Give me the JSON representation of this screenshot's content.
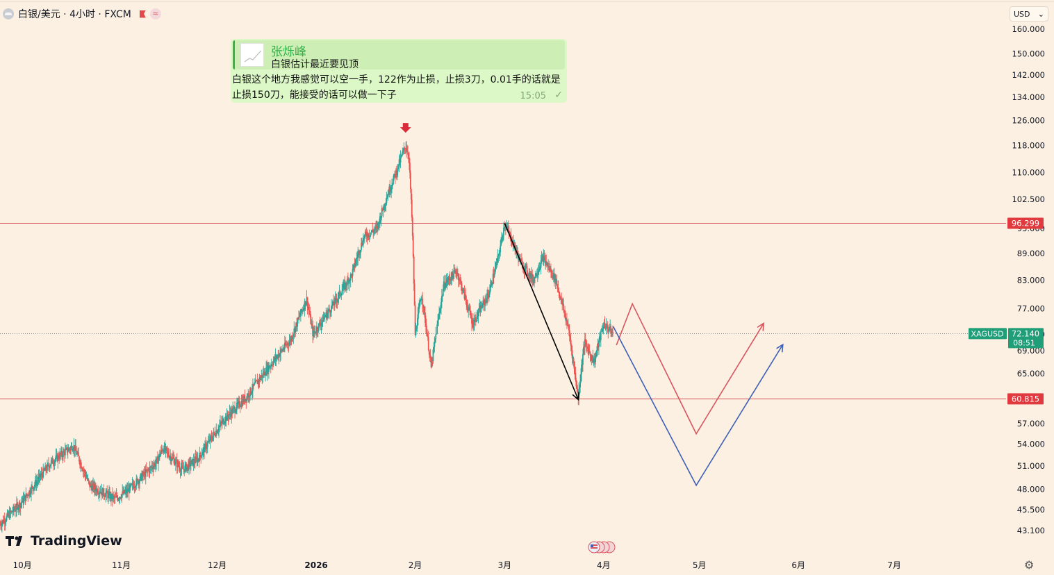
{
  "header": {
    "symbol_title": "白银/美元 · 4小时 · FXCM",
    "currency": "USD",
    "currency_chevron": "⌄",
    "wave_glyph": "≈"
  },
  "message": {
    "name": "张烁峰",
    "quote": "白银估计最近要见顶",
    "body": "白银这个地方我感觉可以空一手，122作为止损，止损3刀，0.01手的话就是止损150刀，能接受的话可以做一下子",
    "time": "15:05",
    "check": "✓"
  },
  "watermark": "TradingView",
  "colors": {
    "background": "#fbf0e2",
    "up": "#26a69a",
    "down": "#ef5350",
    "level_line": "#d9535c",
    "projection_red": "#d9535c",
    "projection_blue": "#3d5fb8",
    "trend_arrow": "#000000",
    "marker_arrow": "#d92b3a",
    "current_price_badge": "#1f9e78",
    "level_badge": "#e0393e"
  },
  "chart_data": {
    "type": "candlestick",
    "symbol": "XAGUSD",
    "timeframe": "4小时",
    "ylim": [
      40.5,
      163
    ],
    "y_ticks": [
      43.1,
      45.5,
      48.0,
      51.0,
      54.0,
      57.0,
      60.815,
      65.0,
      69.0,
      72.0,
      77.0,
      83.0,
      89.0,
      95.0,
      96.299,
      102.5,
      110.0,
      118.0,
      126.0,
      134.0,
      142.0,
      150.0,
      160.0
    ],
    "y_tick_labels": [
      "43.100",
      "45.500",
      "48.000",
      "51.000",
      "54.000",
      "57.000",
      "60.815",
      "65.000",
      "69.000",
      "72.000",
      "77.000",
      "83.000",
      "89.000",
      "95.000",
      "96.299",
      "102.500",
      "110.000",
      "118.000",
      "126.000",
      "134.000",
      "142.000",
      "150.000",
      "160.000"
    ],
    "x_ticks": [
      {
        "date": "2025-10-01",
        "label": "10月"
      },
      {
        "date": "2025-11-01",
        "label": "11月"
      },
      {
        "date": "2025-12-01",
        "label": "12月"
      },
      {
        "date": "2026-01-01",
        "label": "2026"
      },
      {
        "date": "2026-02-01",
        "label": "2月"
      },
      {
        "date": "2026-03-01",
        "label": "3月"
      },
      {
        "date": "2026-04-01",
        "label": "4月"
      },
      {
        "date": "2026-05-01",
        "label": "5月"
      },
      {
        "date": "2026-06-01",
        "label": "6月"
      },
      {
        "date": "2026-07-01",
        "label": "7月"
      }
    ],
    "xlim": [
      "2025-09-24",
      "2026-08-05"
    ],
    "price_path": [
      [
        "2025-09-24",
        43.8
      ],
      [
        "2025-10-01",
        46.5
      ],
      [
        "2025-10-10",
        51.5
      ],
      [
        "2025-10-17",
        53.8
      ],
      [
        "2025-10-22",
        48.5
      ],
      [
        "2025-10-30",
        46.8
      ],
      [
        "2025-11-03",
        47.8
      ],
      [
        "2025-11-12",
        51.5
      ],
      [
        "2025-11-14",
        53.5
      ],
      [
        "2025-11-20",
        50.5
      ],
      [
        "2025-11-25",
        52.0
      ],
      [
        "2025-12-03",
        57.5
      ],
      [
        "2025-12-10",
        61.0
      ],
      [
        "2025-12-17",
        66.0
      ],
      [
        "2025-12-24",
        71.0
      ],
      [
        "2025-12-29",
        79.0
      ],
      [
        "2025-12-31",
        72.0
      ],
      [
        "2026-01-06",
        77.5
      ],
      [
        "2026-01-12",
        84.0
      ],
      [
        "2026-01-16",
        93.0
      ],
      [
        "2026-01-20",
        95.0
      ],
      [
        "2026-01-23",
        103.0
      ],
      [
        "2026-01-26",
        110.0
      ],
      [
        "2026-01-29",
        118.0
      ],
      [
        "2026-01-30",
        115.0
      ],
      [
        "2026-01-31",
        97.0
      ],
      [
        "2026-02-01",
        72.0
      ],
      [
        "2026-02-03",
        80.0
      ],
      [
        "2026-02-06",
        66.0
      ],
      [
        "2026-02-10",
        82.0
      ],
      [
        "2026-02-14",
        85.0
      ],
      [
        "2026-02-19",
        74.0
      ],
      [
        "2026-02-24",
        80.0
      ],
      [
        "2026-02-27",
        88.0
      ],
      [
        "2026-03-01",
        96.3
      ],
      [
        "2026-03-06",
        87.0
      ],
      [
        "2026-03-10",
        83.0
      ],
      [
        "2026-03-13",
        88.0
      ],
      [
        "2026-03-17",
        83.0
      ],
      [
        "2026-03-21",
        73.0
      ],
      [
        "2026-03-24",
        61.0
      ],
      [
        "2026-03-26",
        70.5
      ],
      [
        "2026-03-29",
        67.0
      ],
      [
        "2026-04-01",
        74.0
      ],
      [
        "2026-04-04",
        72.14
      ]
    ],
    "levels": [
      {
        "value": 96.299,
        "label": "96.299"
      },
      {
        "value": 60.815,
        "label": "60.815"
      }
    ],
    "current_price": {
      "symbol": "XAGUSD",
      "value": 72.14,
      "label": "72.140",
      "countdown": "08:51"
    },
    "annotations": {
      "peak_marker": {
        "date": "2026-01-29",
        "value": 122.5
      },
      "trend_arrow": [
        [
          "2026-03-01",
          96.3
        ],
        [
          "2026-03-24",
          60.8
        ]
      ],
      "projection_red": [
        [
          "2026-04-05",
          70.0
        ],
        [
          "2026-04-10",
          78.0
        ],
        [
          "2026-04-30",
          55.5
        ],
        [
          "2026-05-21",
          74.0
        ]
      ],
      "projection_blue": [
        [
          "2026-04-04",
          73.5
        ],
        [
          "2026-04-30",
          48.5
        ],
        [
          "2026-05-27",
          70.0
        ]
      ]
    }
  }
}
